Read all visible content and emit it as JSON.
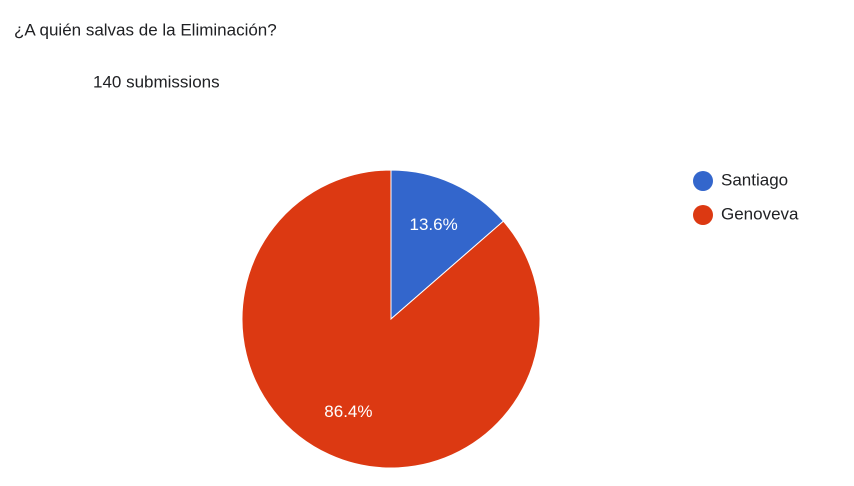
{
  "chart_data": {
    "type": "pie",
    "title": "¿A quién salvas de la Eliminación?",
    "subtitle": "140 submissions",
    "categories": [
      "Santiago",
      "Genoveva"
    ],
    "values": [
      13.6,
      86.4
    ],
    "value_labels": [
      "13.6%",
      "86.4%"
    ],
    "colors": [
      "#3366cc",
      "#dc3912"
    ],
    "legend": "right"
  }
}
